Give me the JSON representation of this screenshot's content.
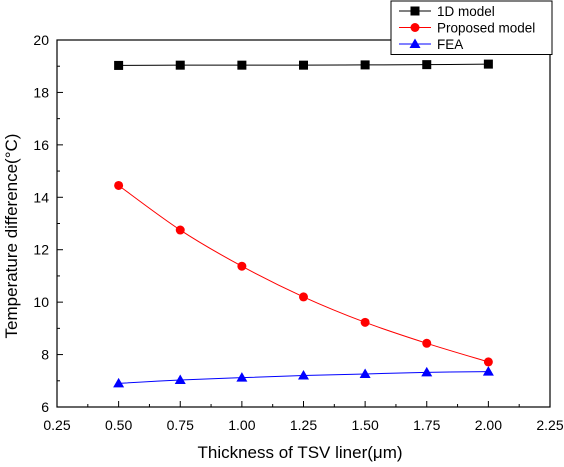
{
  "chart_data": {
    "type": "line",
    "title": "",
    "xlabel": "Thickness of TSV liner(μm)",
    "ylabel": "Temperature difference(°C)",
    "xlim": [
      0.25,
      2.25
    ],
    "ylim": [
      6,
      20
    ],
    "xticks": [
      "0.25",
      "0.50",
      "0.75",
      "1.00",
      "1.25",
      "1.50",
      "1.75",
      "2.00",
      "2.25"
    ],
    "yticks": [
      "6",
      "8",
      "10",
      "12",
      "14",
      "16",
      "18",
      "20"
    ],
    "grid": false,
    "legend_position": "top-right",
    "x": [
      0.5,
      0.75,
      1.0,
      1.25,
      1.5,
      1.75,
      2.0
    ],
    "series": [
      {
        "name": "1D model",
        "color": "#000000",
        "marker": "square",
        "values": [
          19.03,
          19.04,
          19.04,
          19.04,
          19.05,
          19.06,
          19.08
        ]
      },
      {
        "name": "Proposed model",
        "color": "#ff0000",
        "marker": "circle",
        "values": [
          14.45,
          12.75,
          11.37,
          10.2,
          9.23,
          8.43,
          7.72
        ]
      },
      {
        "name": "FEA",
        "color": "#0000ff",
        "marker": "triangle",
        "values": [
          6.9,
          7.03,
          7.12,
          7.2,
          7.26,
          7.32,
          7.35
        ]
      }
    ]
  }
}
